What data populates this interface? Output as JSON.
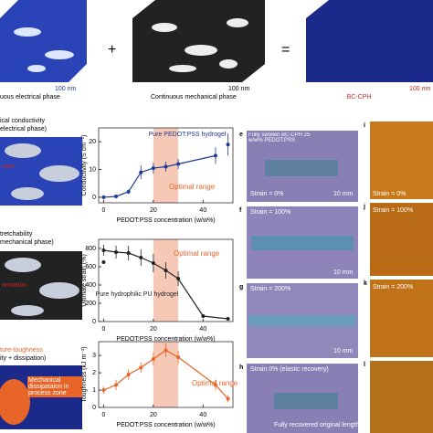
{
  "top": {
    "left_caption": "uous electrical phase",
    "left_scale": "100 nm",
    "plus": "+",
    "middle_caption": "Continuous mechanical phase",
    "middle_scale": "100 nm",
    "equals": "=",
    "right_caption": "BC-CPH",
    "right_scale": "100 nm"
  },
  "left": {
    "p1_title": "ical conductivity",
    "p1_sub": "electrical phase)",
    "p1_tag": "rrent",
    "p2_title": "tretchability",
    "p2_sub": "mechanical phase)",
    "p2_tag": "ormation",
    "p3_title": "ture-toughness",
    "p3_sub": "ity + dissipation)",
    "p3_tag": "Mechanical dissipataion in process zone"
  },
  "photos": {
    "e": "e",
    "e_text": "Fully swollen BC-CPH 25 w/w% PEDOT:PSS",
    "e_strain": "Strain = 0%",
    "e_scale": "10 mm",
    "f": "f",
    "f_strain": "Strain = 100%",
    "f_scale": "10 mm",
    "g": "g",
    "g_strain": "Strain = 200%",
    "g_scale": "10 mm",
    "h": "h",
    "h_strain": "Strain 0% (elastic recovery)",
    "h_note": "Fully recovered original length",
    "i": "i",
    "i_strain": "Strain = 0%",
    "j": "j",
    "j_strain": "Strain = 100%",
    "k": "k",
    "k_strain": "Strain = 200%",
    "l": "l"
  },
  "chart_data": [
    {
      "type": "line",
      "ylabel": "Conductivity (S cm⁻¹)",
      "xlabel": "PEDOT:PSS concentration (w/w%)",
      "xlim": [
        -2,
        52
      ],
      "xticks": [
        0,
        20,
        40
      ],
      "ylim": [
        -2,
        25
      ],
      "yticks": [
        0,
        10,
        20
      ],
      "highlight": [
        20,
        30
      ],
      "annotation": "Optimal range",
      "color": "#1f3a93",
      "series": [
        {
          "x": [
            0,
            5,
            10,
            15,
            20,
            25,
            30,
            45
          ],
          "values": [
            0,
            0.3,
            2,
            9,
            10.5,
            11,
            12,
            15
          ],
          "errors": [
            0.2,
            0.3,
            0.8,
            2.5,
            2,
            1.8,
            1.8,
            3
          ]
        },
        {
          "name": "Pure PEDOT:PSS hydrogel",
          "x": [
            50
          ],
          "values": [
            19
          ],
          "errors": [
            4
          ]
        }
      ]
    },
    {
      "type": "line",
      "ylabel": "Ultimate strain (%)",
      "xlabel": "PEDOT:PSS concentration (w/w%)",
      "xlim": [
        -2,
        52
      ],
      "xticks": [
        0,
        20,
        40
      ],
      "ylim": [
        0,
        900
      ],
      "yticks": [
        0,
        200,
        400,
        600,
        800
      ],
      "highlight": [
        20,
        30
      ],
      "annotation": "Optimal range",
      "color": "#222222",
      "series": [
        {
          "x": [
            0,
            5,
            10,
            15,
            20,
            25,
            30,
            40,
            50
          ],
          "values": [
            780,
            760,
            750,
            700,
            640,
            560,
            470,
            60,
            30
          ],
          "errors": [
            60,
            70,
            80,
            90,
            100,
            90,
            80,
            20,
            10
          ]
        },
        {
          "name": "Pure hydrophilic PU hydrogel",
          "x": [
            0
          ],
          "values": [
            650
          ],
          "errors": [
            0
          ]
        }
      ]
    },
    {
      "type": "line",
      "ylabel": "Toughness (kJ m⁻³)",
      "xlabel": "PEDOT:PSS concentration (w/w%)",
      "xlim": [
        -2,
        52
      ],
      "xticks": [
        0,
        20,
        40
      ],
      "ylim": [
        0,
        3.8
      ],
      "yticks": [
        0,
        1,
        2,
        3
      ],
      "highlight": [
        20,
        30
      ],
      "annotation": "Optimal range",
      "color": "#e8652a",
      "series": [
        {
          "x": [
            0,
            5,
            10,
            15,
            20,
            25,
            30,
            45,
            50
          ],
          "values": [
            1.0,
            1.3,
            1.9,
            2.3,
            2.8,
            3.3,
            2.9,
            1.3,
            0.5
          ],
          "errors": [
            0.2,
            0.3,
            0.3,
            0.3,
            0.4,
            0.4,
            0.4,
            0.3,
            0.2
          ]
        }
      ]
    }
  ]
}
